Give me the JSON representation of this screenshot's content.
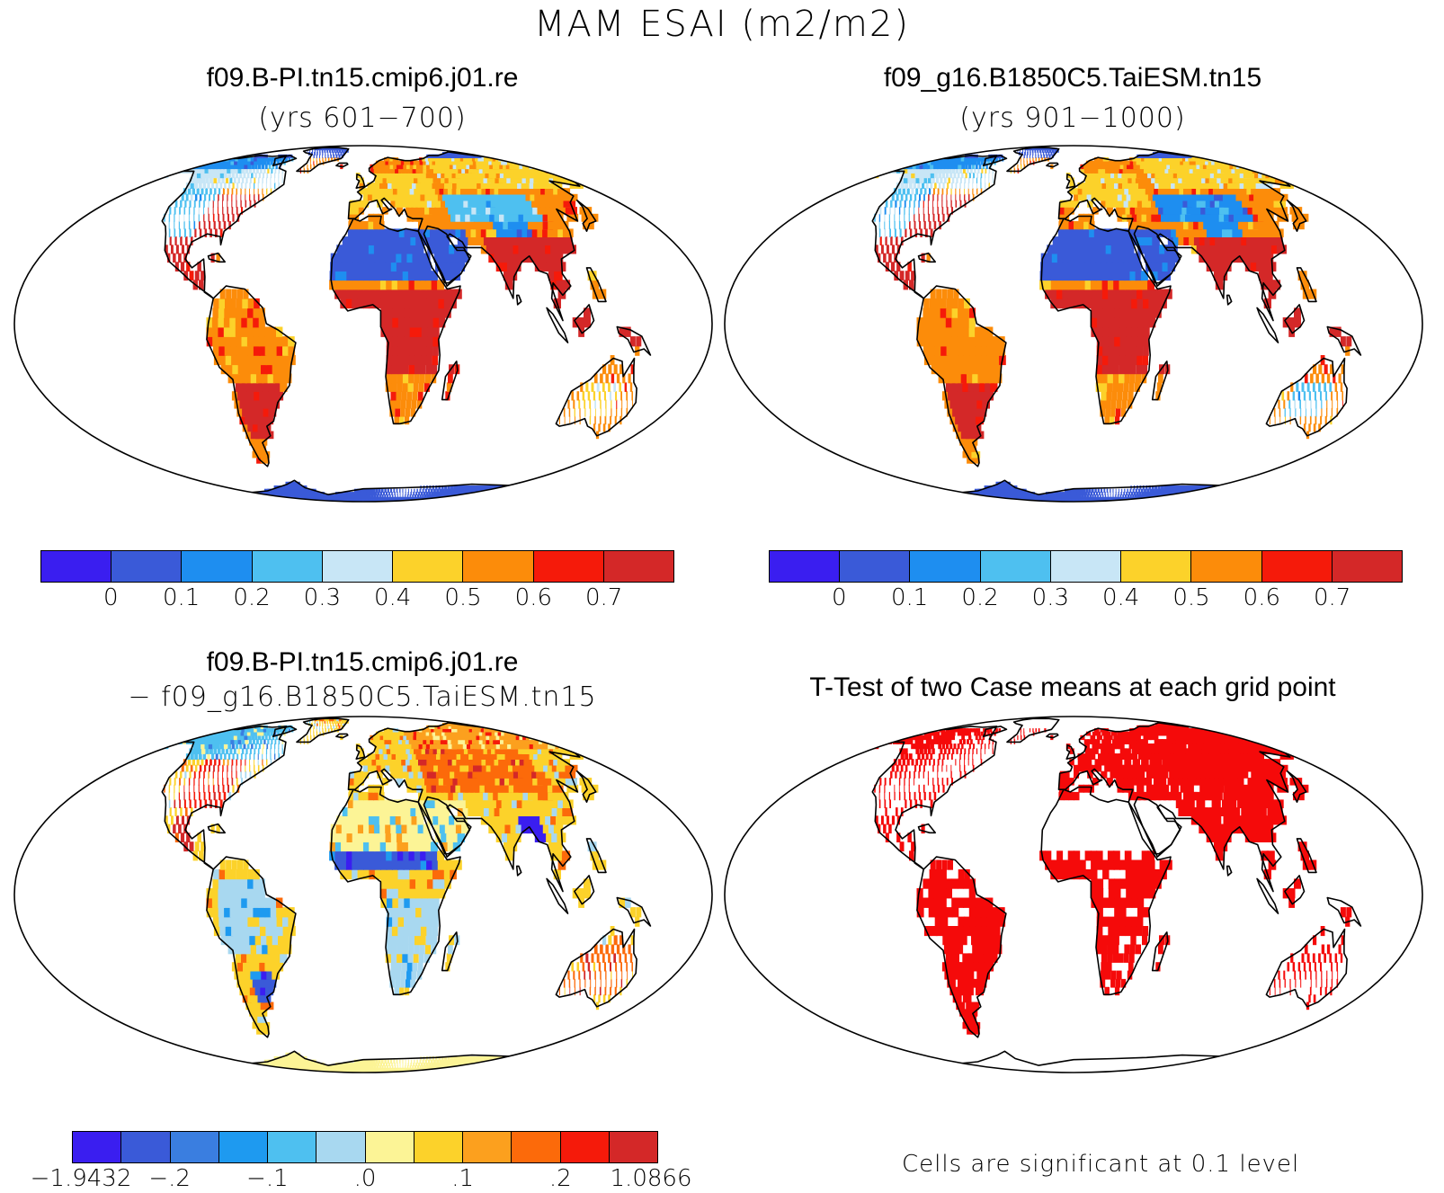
{
  "title": "MAM ESAI (m2/m2)",
  "panels": [
    {
      "title": "f09.B-PI.tn15.cmip6.j01.re",
      "subtitle": "(yrs 601−700)"
    },
    {
      "title": "f09_g16.B1850C5.TaiESM.tn15",
      "subtitle": "(yrs 901−1000)"
    },
    {
      "title": "f09.B-PI.tn15.cmip6.j01.re",
      "subtitle": "− f09_g16.B1850C5.TaiESM.tn15"
    },
    {
      "title": "T-Test of two Case means at each grid point",
      "subtitle": ""
    }
  ],
  "colorbar_main": {
    "colors": [
      "#3a1ef0",
      "#3a5ad8",
      "#1e8ef0",
      "#4ec0f0",
      "#c8e6f6",
      "#fcd22a",
      "#fc8c0a",
      "#f51a0a",
      "#d42828"
    ],
    "labels": [
      "0",
      "0.1",
      "0.2",
      "0.3",
      "0.4",
      "0.5",
      "0.6",
      "0.7"
    ]
  },
  "colorbar_diff": {
    "colors": [
      "#3a1ef0",
      "#3a5ad8",
      "#3a7ee0",
      "#1e9af0",
      "#4ec0f0",
      "#a8d8f0",
      "#fcf496",
      "#fcd22a",
      "#fca01e",
      "#fc6a0a",
      "#f51a0a",
      "#d42828"
    ],
    "labels": [
      "−1.9432",
      "−.2",
      "−.1",
      ".0",
      ".1",
      ".2",
      "1.0866"
    ]
  },
  "significance_note": "Cells are significant at 0.1 level",
  "significance_color": "#f50a0a"
}
